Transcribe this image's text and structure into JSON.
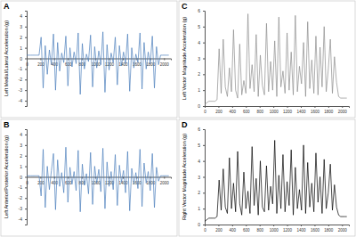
{
  "chart_data": [
    {
      "type": "line",
      "title": "A",
      "y_label": "Left Medial/Lateral Acceleration (g)",
      "color": "#4a7ebb",
      "x": [
        0,
        30,
        60,
        90,
        120,
        150,
        180,
        210,
        240,
        270,
        300,
        330,
        360,
        390,
        420,
        450,
        480,
        510,
        540,
        570,
        600,
        630,
        660,
        690,
        720,
        750,
        780,
        810,
        840,
        870,
        900,
        930,
        960,
        990,
        1020,
        1050,
        1080,
        1110,
        1140,
        1170,
        1200,
        1230,
        1260,
        1290,
        1320,
        1350,
        1380,
        1410,
        1440,
        1470,
        1500,
        1530,
        1560,
        1590,
        1620,
        1650,
        1680,
        1710,
        1740,
        1770,
        1800,
        1830,
        1860,
        1890,
        1920,
        1950,
        1980,
        2010,
        2040,
        2070
      ],
      "values": [
        0.3,
        0.3,
        0.3,
        0.3,
        0.3,
        0.3,
        0.3,
        2.0,
        -2.8,
        1.2,
        -1.5,
        0.8,
        -0.6,
        2.3,
        -3.0,
        1.5,
        -1.2,
        0.5,
        -0.4,
        2.1,
        -2.6,
        1.0,
        -0.8,
        0.6,
        -0.5,
        2.4,
        -3.4,
        1.4,
        -1.0,
        0.4,
        -0.3,
        2.2,
        -2.7,
        1.1,
        -0.9,
        0.7,
        -0.6,
        2.5,
        -3.2,
        1.3,
        -1.1,
        0.5,
        -0.4,
        2.0,
        -2.5,
        1.2,
        -0.7,
        0.6,
        -0.5,
        2.3,
        -3.1,
        1.0,
        -0.9,
        0.4,
        -0.4,
        2.4,
        -2.9,
        1.5,
        -1.0,
        0.6,
        -0.5,
        2.1,
        -2.8,
        1.1,
        -0.6,
        0.3,
        0.3,
        0.3,
        0.3,
        0.3
      ],
      "xlim": [
        0,
        2100
      ],
      "xticks": [
        0,
        200,
        400,
        600,
        800,
        1000,
        1200,
        1400,
        1600,
        1800,
        2000
      ],
      "ylim": [
        -4.5,
        4.5
      ],
      "yticks": [
        -4,
        -3,
        -2,
        -1,
        0,
        1,
        2,
        3,
        4
      ]
    },
    {
      "type": "line",
      "title": "B",
      "y_label": "Left Anterior/Posterior Acceleration (g)",
      "color": "#4a7ebb",
      "x": [
        0,
        30,
        60,
        90,
        120,
        150,
        180,
        210,
        240,
        270,
        300,
        330,
        360,
        390,
        420,
        450,
        480,
        510,
        540,
        570,
        600,
        630,
        660,
        690,
        720,
        750,
        780,
        810,
        840,
        870,
        900,
        930,
        960,
        990,
        1020,
        1050,
        1080,
        1110,
        1140,
        1170,
        1200,
        1230,
        1260,
        1290,
        1320,
        1350,
        1380,
        1410,
        1440,
        1470,
        1500,
        1530,
        1560,
        1590,
        1620,
        1650,
        1680,
        1710,
        1740,
        1770,
        1800,
        1830,
        1860,
        1890,
        1920,
        1950,
        1980,
        2010,
        2040,
        2070
      ],
      "values": [
        0.1,
        0.1,
        0.1,
        0.1,
        0.1,
        0.1,
        0.1,
        -1.8,
        2.6,
        -2.9,
        1.0,
        -1.2,
        0.6,
        2.2,
        -3.1,
        1.6,
        -0.9,
        0.4,
        -1.5,
        2.8,
        -2.4,
        0.9,
        -0.7,
        0.5,
        -1.3,
        2.5,
        -3.3,
        1.2,
        -0.8,
        0.3,
        -1.6,
        2.3,
        -2.6,
        1.0,
        -0.6,
        0.7,
        -1.4,
        2.7,
        -3.0,
        1.4,
        -0.9,
        0.5,
        -1.2,
        2.1,
        -2.7,
        1.1,
        -0.5,
        0.6,
        -1.5,
        2.4,
        -3.2,
        0.8,
        -0.7,
        0.4,
        -1.1,
        2.6,
        -2.8,
        1.3,
        -0.6,
        0.5,
        -1.3,
        2.2,
        -2.9,
        0.9,
        -0.4,
        0.1,
        0.1,
        0.1,
        0.1,
        0.1
      ],
      "xlim": [
        0,
        2100
      ],
      "xticks": [
        0,
        200,
        400,
        600,
        800,
        1000,
        1200,
        1400,
        1600,
        1800,
        2000
      ],
      "ylim": [
        -4.5,
        4.5
      ],
      "yticks": [
        -4,
        -3,
        -2,
        -1,
        0,
        1,
        2,
        3,
        4
      ]
    },
    {
      "type": "line",
      "title": "C",
      "y_label": "Left Vector Magnitude Acceleration (g)",
      "color": "#8c8c8c",
      "x": [
        0,
        30,
        60,
        90,
        120,
        150,
        180,
        210,
        240,
        270,
        300,
        330,
        360,
        390,
        420,
        450,
        480,
        510,
        540,
        570,
        600,
        630,
        660,
        690,
        720,
        750,
        780,
        810,
        840,
        870,
        900,
        930,
        960,
        990,
        1020,
        1050,
        1080,
        1110,
        1140,
        1170,
        1200,
        1230,
        1260,
        1290,
        1320,
        1350,
        1380,
        1410,
        1440,
        1470,
        1500,
        1530,
        1560,
        1590,
        1620,
        1650,
        1680,
        1710,
        1740,
        1770,
        1800,
        1830,
        1860,
        1890,
        1920,
        1950,
        1980,
        2010,
        2040,
        2070
      ],
      "values": [
        0.1,
        0.2,
        0.3,
        0.3,
        0.3,
        0.3,
        0.4,
        3.6,
        0.8,
        4.2,
        1.2,
        0.6,
        2.4,
        0.9,
        4.8,
        1.0,
        0.5,
        3.9,
        0.7,
        1.6,
        0.8,
        5.8,
        1.1,
        2.6,
        0.9,
        4.5,
        0.6,
        3.2,
        1.3,
        0.7,
        5.2,
        0.9,
        2.8,
        1.0,
        4.1,
        0.6,
        5.6,
        1.2,
        2.2,
        0.8,
        4.6,
        1.0,
        3.4,
        0.7,
        5.7,
        0.9,
        2.5,
        1.4,
        4.0,
        0.6,
        5.3,
        1.1,
        2.9,
        0.8,
        4.4,
        0.7,
        3.7,
        1.2,
        5.0,
        0.9,
        2.3,
        4.2,
        0.8,
        3.1,
        1.5,
        0.6,
        0.5,
        0.5,
        0.5,
        0.5
      ],
      "xlim": [
        0,
        2100
      ],
      "xticks": [
        0,
        200,
        400,
        600,
        800,
        1000,
        1200,
        1400,
        1600,
        1800,
        2000
      ],
      "ylim": [
        0,
        6
      ],
      "yticks": [
        0,
        1,
        2,
        3,
        4,
        5,
        6
      ]
    },
    {
      "type": "line",
      "title": "D",
      "y_label": "Right Vector Magnitude Acceleration (g)",
      "color": "#000000",
      "x": [
        0,
        30,
        60,
        90,
        120,
        150,
        180,
        210,
        240,
        270,
        300,
        330,
        360,
        390,
        420,
        450,
        480,
        510,
        540,
        570,
        600,
        630,
        660,
        690,
        720,
        750,
        780,
        810,
        840,
        870,
        900,
        930,
        960,
        990,
        1020,
        1050,
        1080,
        1110,
        1140,
        1170,
        1200,
        1230,
        1260,
        1290,
        1320,
        1350,
        1380,
        1410,
        1440,
        1470,
        1500,
        1530,
        1560,
        1590,
        1620,
        1650,
        1680,
        1710,
        1740,
        1770,
        1800,
        1830,
        1860,
        1890,
        1920,
        1950,
        1980,
        2010,
        2040,
        2070
      ],
      "values": [
        0.2,
        0.3,
        0.4,
        0.4,
        0.4,
        0.4,
        0.5,
        2.8,
        0.9,
        3.5,
        1.1,
        0.7,
        4.2,
        1.0,
        2.6,
        0.8,
        4.6,
        1.3,
        0.6,
        3.3,
        1.0,
        2.1,
        0.7,
        4.9,
        1.2,
        2.9,
        0.6,
        4.0,
        1.1,
        0.8,
        3.7,
        0.9,
        2.4,
        1.3,
        5.3,
        0.7,
        3.1,
        1.0,
        4.4,
        0.8,
        2.7,
        1.2,
        4.7,
        0.6,
        3.6,
        1.0,
        2.2,
        0.9,
        5.0,
        0.7,
        3.9,
        1.1,
        2.6,
        0.8,
        4.5,
        1.4,
        3.0,
        0.7,
        4.1,
        1.0,
        2.0,
        3.8,
        0.9,
        2.5,
        1.1,
        0.6,
        0.5,
        0.5,
        0.5,
        0.5
      ],
      "xlim": [
        0,
        2100
      ],
      "xticks": [
        0,
        200,
        400,
        600,
        800,
        1000,
        1200,
        1400,
        1600,
        1800,
        2000
      ],
      "ylim": [
        0,
        6
      ],
      "yticks": [
        0,
        1,
        2,
        3,
        4,
        5,
        6
      ]
    }
  ]
}
